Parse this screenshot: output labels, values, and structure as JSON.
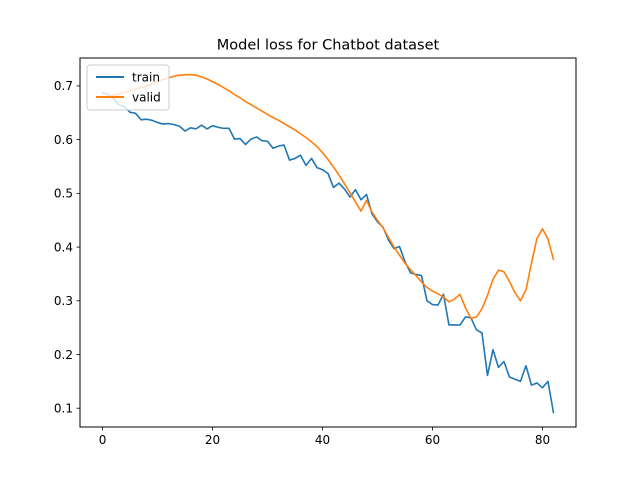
{
  "chart_data": {
    "type": "line",
    "title": "Model loss for Chatbot dataset",
    "xlabel": "",
    "ylabel": "",
    "xlim": [
      -4.1,
      86.1
    ],
    "ylim": [
      0.065,
      0.752
    ],
    "xticks": [
      0,
      20,
      40,
      60,
      80
    ],
    "yticks": [
      0.1,
      0.2,
      0.3,
      0.4,
      0.5,
      0.6,
      0.7
    ],
    "xtick_labels": [
      "0",
      "20",
      "40",
      "60",
      "80"
    ],
    "ytick_labels": [
      "0.1",
      "0.2",
      "0.3",
      "0.4",
      "0.5",
      "0.6",
      "0.7"
    ],
    "grid": false,
    "legend": "upper-left",
    "series": [
      {
        "name": "train",
        "color": "#1f77b4",
        "x": [
          0,
          1,
          2,
          3,
          4,
          5,
          6,
          7,
          8,
          9,
          10,
          11,
          12,
          13,
          14,
          15,
          16,
          17,
          18,
          19,
          20,
          21,
          22,
          23,
          24,
          25,
          26,
          27,
          28,
          29,
          30,
          31,
          32,
          33,
          34,
          35,
          36,
          37,
          38,
          39,
          40,
          41,
          42,
          43,
          44,
          45,
          46,
          47,
          48,
          49,
          50,
          51,
          52,
          53,
          54,
          55,
          56,
          57,
          58,
          59,
          60,
          61,
          62,
          63,
          64,
          65,
          66,
          67,
          68,
          69,
          70,
          71,
          72,
          73,
          74,
          75,
          76,
          77,
          78,
          79,
          80,
          81,
          82
        ],
        "y": [
          0.687,
          0.685,
          0.676,
          0.665,
          0.661,
          0.651,
          0.649,
          0.637,
          0.638,
          0.636,
          0.632,
          0.629,
          0.63,
          0.628,
          0.625,
          0.616,
          0.622,
          0.62,
          0.627,
          0.62,
          0.626,
          0.623,
          0.621,
          0.621,
          0.601,
          0.602,
          0.591,
          0.601,
          0.605,
          0.598,
          0.597,
          0.584,
          0.588,
          0.59,
          0.562,
          0.565,
          0.571,
          0.552,
          0.565,
          0.548,
          0.544,
          0.537,
          0.511,
          0.519,
          0.508,
          0.493,
          0.507,
          0.488,
          0.498,
          0.462,
          0.447,
          0.437,
          0.413,
          0.397,
          0.401,
          0.373,
          0.352,
          0.349,
          0.347,
          0.3,
          0.293,
          0.292,
          0.312,
          0.255,
          0.255,
          0.255,
          0.27,
          0.268,
          0.246,
          0.24,
          0.161,
          0.209,
          0.176,
          0.187,
          0.158,
          0.154,
          0.15,
          0.179,
          0.143,
          0.147,
          0.138,
          0.15,
          0.092
        ]
      },
      {
        "name": "valid",
        "color": "#ff7f0e",
        "x": [
          0,
          1,
          2,
          3,
          4,
          5,
          6,
          7,
          8,
          9,
          10,
          11,
          12,
          13,
          14,
          15,
          16,
          17,
          18,
          19,
          20,
          21,
          22,
          23,
          24,
          25,
          26,
          27,
          28,
          29,
          30,
          31,
          32,
          33,
          34,
          35,
          36,
          37,
          38,
          39,
          40,
          41,
          42,
          43,
          44,
          45,
          46,
          47,
          48,
          49,
          50,
          51,
          52,
          53,
          54,
          55,
          56,
          57,
          58,
          59,
          60,
          61,
          62,
          63,
          64,
          65,
          66,
          67,
          68,
          69,
          70,
          71,
          72,
          73,
          74,
          75,
          76,
          77,
          78,
          79,
          80,
          81,
          82
        ],
        "y": [
          0.68,
          0.681,
          0.683,
          0.685,
          0.688,
          0.691,
          0.694,
          0.697,
          0.7,
          0.704,
          0.708,
          0.712,
          0.715,
          0.718,
          0.72,
          0.721,
          0.721,
          0.72,
          0.717,
          0.713,
          0.708,
          0.703,
          0.697,
          0.691,
          0.684,
          0.678,
          0.671,
          0.665,
          0.659,
          0.653,
          0.647,
          0.641,
          0.636,
          0.63,
          0.624,
          0.618,
          0.611,
          0.604,
          0.596,
          0.587,
          0.576,
          0.563,
          0.549,
          0.534,
          0.518,
          0.501,
          0.484,
          0.467,
          0.487,
          0.465,
          0.45,
          0.436,
          0.418,
          0.4,
          0.385,
          0.37,
          0.358,
          0.347,
          0.335,
          0.325,
          0.318,
          0.313,
          0.307,
          0.298,
          0.303,
          0.312,
          0.287,
          0.267,
          0.27,
          0.285,
          0.31,
          0.34,
          0.357,
          0.354,
          0.336,
          0.315,
          0.3,
          0.32,
          0.37,
          0.416,
          0.434,
          0.415,
          0.377
        ]
      }
    ]
  }
}
